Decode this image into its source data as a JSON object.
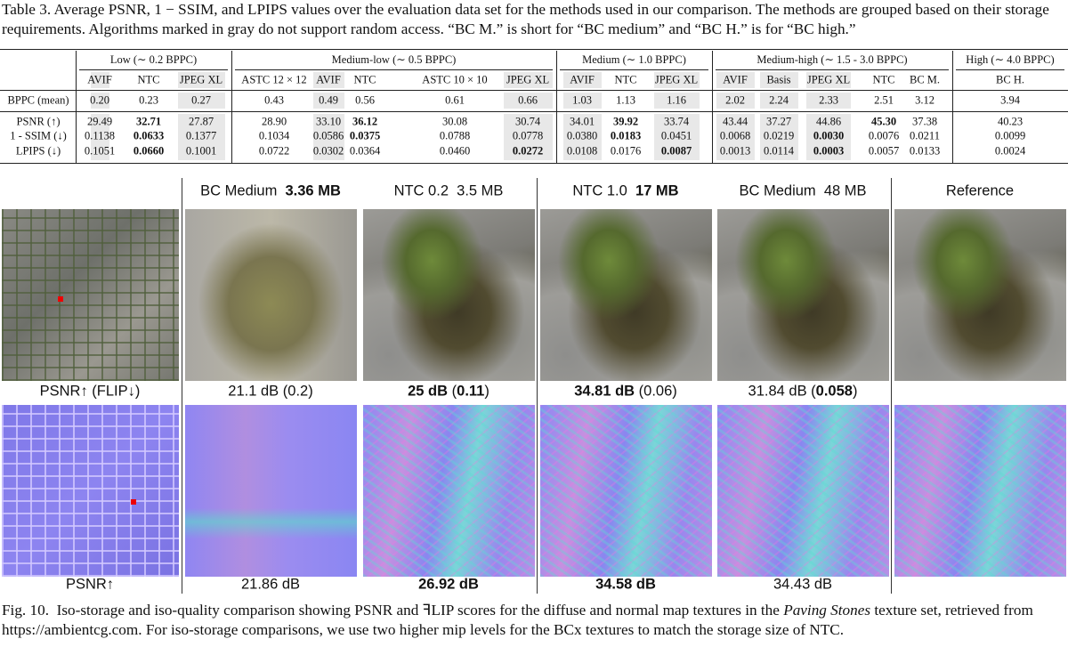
{
  "table": {
    "caption": "Table 3.  Average PSNR, 1 − SSIM, and LPIPS values over the evaluation data set for the methods used in our comparison. The methods are grouped based on their storage requirements. Algorithms marked in gray do not support random access. “BC M.” is short for “BC medium” and “BC H.” is for “BC high.”",
    "groups": [
      {
        "label": "Low (∼ 0.2 BPPC)",
        "span": 3
      },
      {
        "label": "Medium-low (∼ 0.5 BPPC)",
        "span": 5
      },
      {
        "label": "Medium (∼ 1.0 BPPC)",
        "span": 3
      },
      {
        "label": "Medium-high (∼ 1.5 - 3.0 BPPC)",
        "span": 5
      },
      {
        "label": "High (∼ 4.0 BPPC)",
        "span": 1
      }
    ],
    "columns": [
      {
        "name": "AVIF",
        "gray": true
      },
      {
        "name": "NTC",
        "gray": false
      },
      {
        "name": "JPEG XL",
        "gray": true
      },
      {
        "name": "ASTC 12 × 12",
        "gray": false
      },
      {
        "name": "AVIF",
        "gray": true
      },
      {
        "name": "NTC",
        "gray": false
      },
      {
        "name": "ASTC 10 × 10",
        "gray": false
      },
      {
        "name": "JPEG XL",
        "gray": true
      },
      {
        "name": "AVIF",
        "gray": true
      },
      {
        "name": "NTC",
        "gray": false
      },
      {
        "name": "JPEG XL",
        "gray": true
      },
      {
        "name": "AVIF",
        "gray": true
      },
      {
        "name": "Basis",
        "gray": true
      },
      {
        "name": "JPEG XL",
        "gray": true
      },
      {
        "name": "NTC",
        "gray": false
      },
      {
        "name": "BC M.",
        "gray": false
      },
      {
        "name": "BC H.",
        "gray": false
      }
    ],
    "rows": [
      {
        "label": "BPPC (mean)",
        "cells": [
          "0.20",
          "0.23",
          "0.27",
          "0.43",
          "0.49",
          "0.56",
          "0.61",
          "0.66",
          "1.03",
          "1.13",
          "1.16",
          "2.02",
          "2.24",
          "2.33",
          "2.51",
          "3.12",
          "3.94"
        ],
        "bold": []
      },
      {
        "label": "PSNR (↑)",
        "cells": [
          "29.49",
          "32.71",
          "27.87",
          "28.90",
          "33.10",
          "36.12",
          "30.08",
          "30.74",
          "34.01",
          "39.92",
          "33.74",
          "43.44",
          "37.27",
          "44.86",
          "45.30",
          "37.38",
          "40.23"
        ],
        "bold": [
          1,
          5,
          9,
          14
        ]
      },
      {
        "label": "1 - SSIM (↓)",
        "cells": [
          "0.1138",
          "0.0633",
          "0.1377",
          "0.1034",
          "0.0586",
          "0.0375",
          "0.0788",
          "0.0778",
          "0.0380",
          "0.0183",
          "0.0451",
          "0.0068",
          "0.0219",
          "0.0030",
          "0.0076",
          "0.0211",
          "0.0099"
        ],
        "bold": [
          1,
          5,
          9,
          13
        ]
      },
      {
        "label": "LPIPS (↓)",
        "cells": [
          "0.1051",
          "0.0660",
          "0.1001",
          "0.0722",
          "0.0302",
          "0.0364",
          "0.0460",
          "0.0272",
          "0.0108",
          "0.0176",
          "0.0087",
          "0.0013",
          "0.0114",
          "0.0003",
          "0.0057",
          "0.0133",
          "0.0024"
        ],
        "bold": [
          1,
          7,
          10,
          13
        ]
      }
    ]
  },
  "figure": {
    "headers": [
      [
        {
          "text": "BC Medium  ",
          "bold": false
        },
        {
          "text": "3.36 MB",
          "bold": true
        }
      ],
      [
        {
          "text": "NTC 0.2  3.5 MB",
          "bold": false
        }
      ],
      [
        {
          "text": "NTC 1.0  ",
          "bold": false
        },
        {
          "text": "17 MB",
          "bold": true
        }
      ],
      [
        {
          "text": "BC Medium  48 MB",
          "bold": false
        }
      ],
      [
        {
          "text": "Reference",
          "bold": false
        }
      ]
    ],
    "row_labels": [
      "PSNR↑ (FLIP↓)",
      "PSNR↑"
    ],
    "diffuse_scores": [
      [
        {
          "text": "21.1 dB (0.2)",
          "bold": false
        }
      ],
      [
        {
          "text": "25 dB",
          "bold": true
        },
        {
          "text": " (",
          "bold": false
        },
        {
          "text": "0.11",
          "bold": true
        },
        {
          "text": ")",
          "bold": false
        }
      ],
      [
        {
          "text": "34.81 dB",
          "bold": true
        },
        {
          "text": " (0.06)",
          "bold": false
        }
      ],
      [
        {
          "text": "31.84 dB (",
          "bold": false
        },
        {
          "text": "0.058",
          "bold": true
        },
        {
          "text": ")",
          "bold": false
        }
      ]
    ],
    "normal_scores": [
      [
        {
          "text": "21.86 dB",
          "bold": false
        }
      ],
      [
        {
          "text": "26.92 dB",
          "bold": true
        }
      ],
      [
        {
          "text": "34.58 dB",
          "bold": true
        }
      ],
      [
        {
          "text": "34.43 dB",
          "bold": false
        }
      ]
    ],
    "caption": [
      {
        "text": "Fig. 10.  Iso-storage and iso-quality comparison showing PSNR and ꟻLIP scores for the diffuse and normal map textures in the ",
        "italic": false
      },
      {
        "text": "Paving Stones",
        "italic": true
      },
      {
        "text": " texture set, retrieved from https://ambientcg.com. For iso-storage comparisons, we use two higher mip levels for the BCx textures to match the storage size of NTC.",
        "italic": false
      }
    ]
  }
}
